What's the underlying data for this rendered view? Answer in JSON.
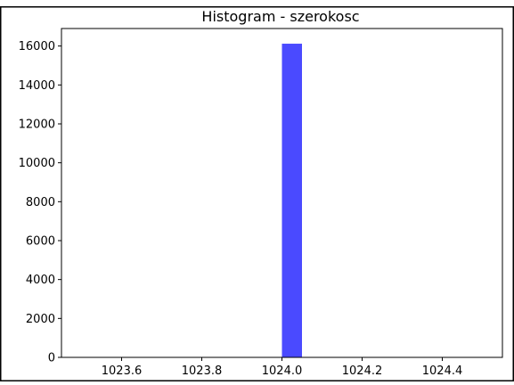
{
  "chart_data": {
    "type": "bar",
    "title": "Histogram - szerokosc",
    "xlabel": "",
    "ylabel": "",
    "xlim": [
      1023.45,
      1024.55
    ],
    "ylim": [
      0,
      16900
    ],
    "x_ticks": [
      "1023.6",
      "1023.8",
      "1024.0",
      "1024.2",
      "1024.4"
    ],
    "y_ticks": [
      "0",
      "2000",
      "4000",
      "6000",
      "8000",
      "10000",
      "12000",
      "14000",
      "16000"
    ],
    "bins": [
      {
        "x_start": 1024.0,
        "x_end": 1024.05,
        "value": 16120
      }
    ],
    "bar_color": "#4a4aff",
    "grid": false
  }
}
